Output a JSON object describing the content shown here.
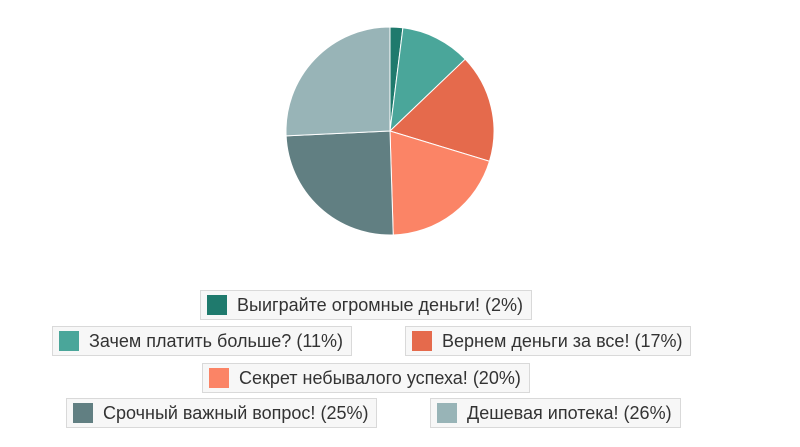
{
  "chart_data": {
    "type": "pie",
    "start_angle_deg": 0,
    "direction": "clockwise",
    "slices": [
      {
        "label": "Выиграйте огромные деньги!",
        "value": 2,
        "percent_label": "(2%)",
        "color": "#1f7a6d"
      },
      {
        "label": "Зачем платить больше?",
        "value": 11,
        "percent_label": "(11%)",
        "color": "#4aa69a"
      },
      {
        "label": "Вернем деньги за все!",
        "value": 17,
        "percent_label": "(17%)",
        "color": "#e56a4c"
      },
      {
        "label": "Секрет небывалого успеха!",
        "value": 20,
        "percent_label": "(20%)",
        "color": "#fb8466"
      },
      {
        "label": "Срочный важный вопрос!",
        "value": 25,
        "percent_label": "(25%)",
        "color": "#617f82"
      },
      {
        "label": "Дешевая ипотека!",
        "value": 26,
        "percent_label": "(26%)",
        "color": "#98b4b7"
      }
    ],
    "legend_position": "bottom"
  }
}
